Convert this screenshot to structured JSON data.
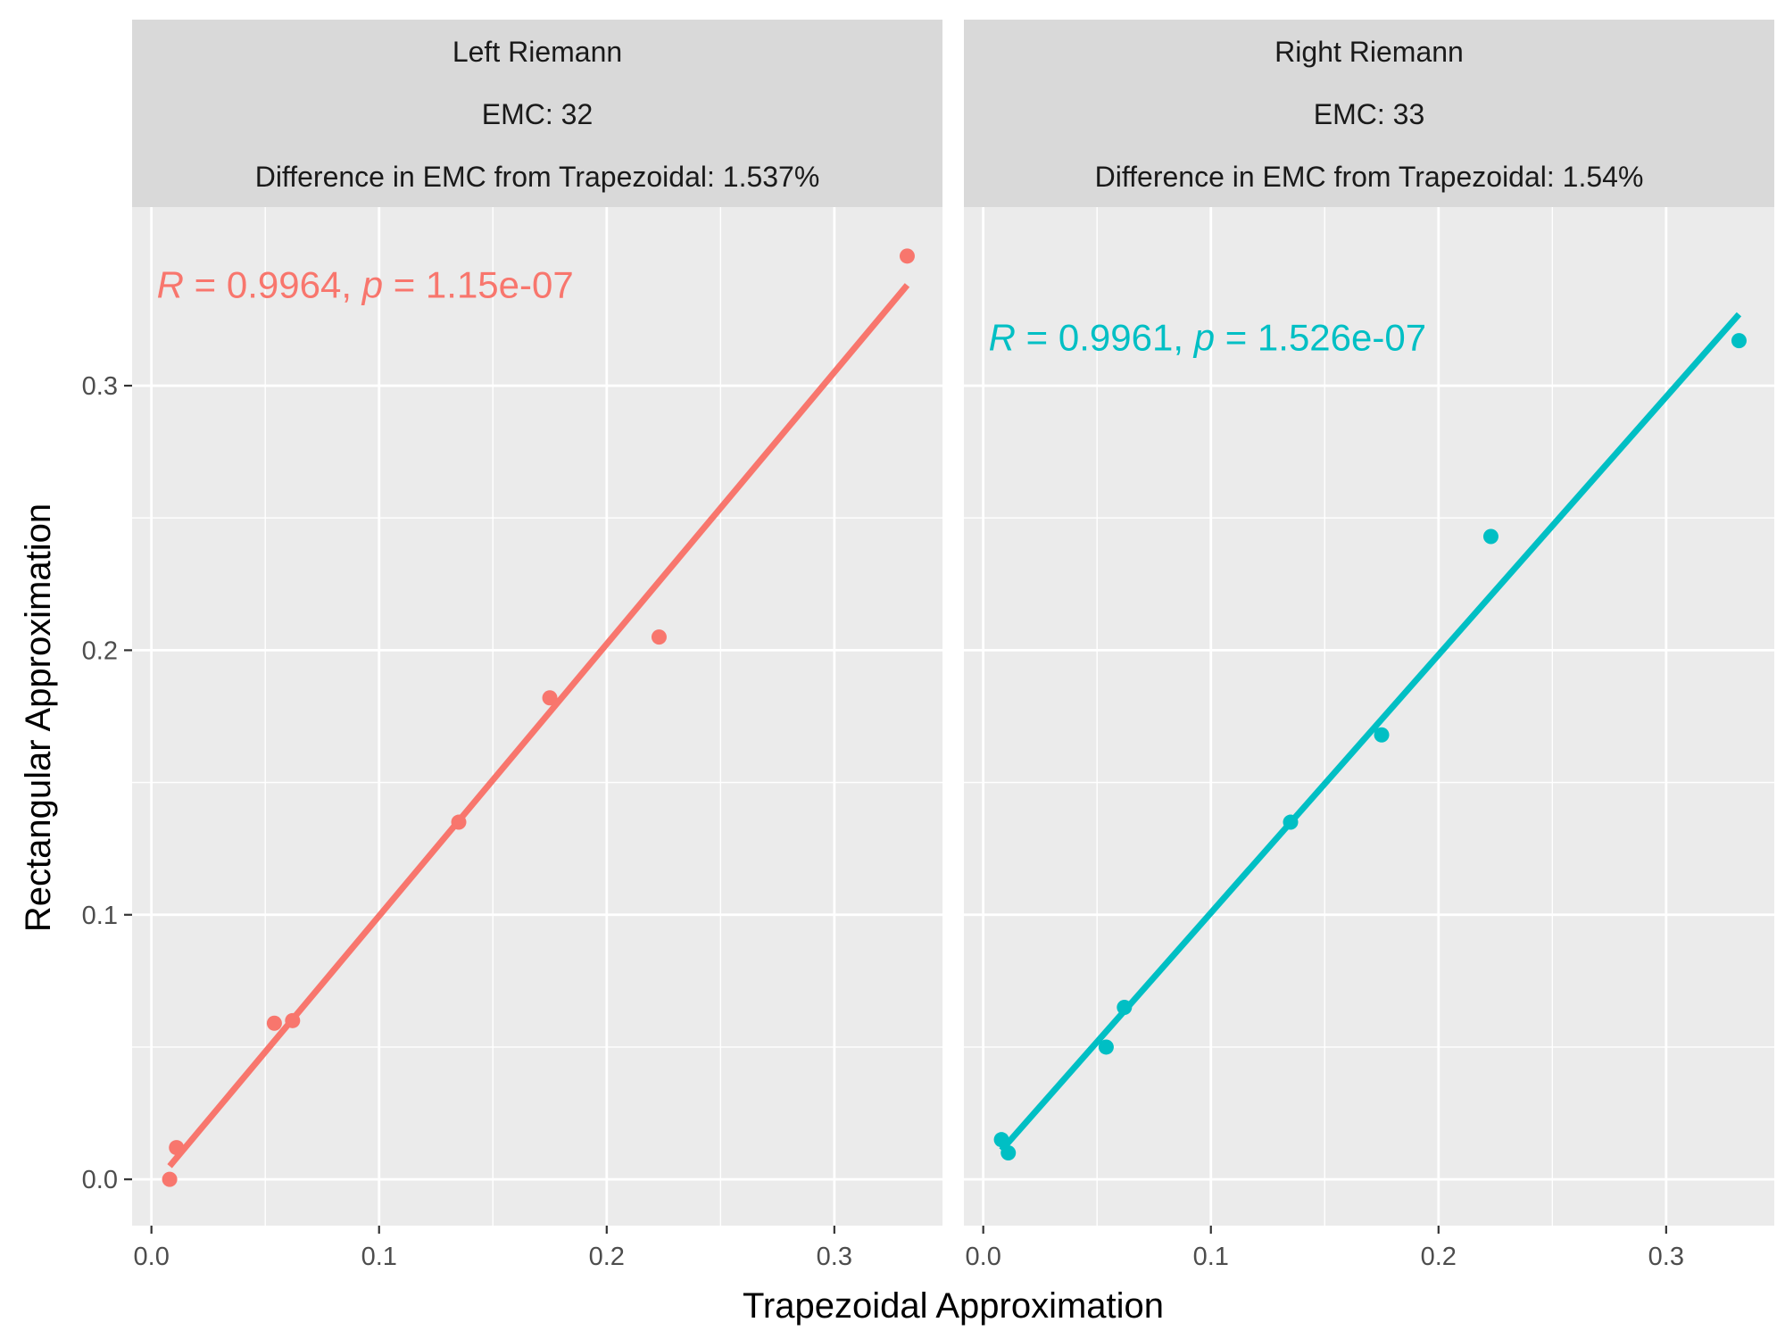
{
  "chart_data": {
    "type": "scatter",
    "xlabel": "Trapezoidal Approximation",
    "ylabel": "Rectangular Approximation",
    "xlim": [
      -0.0085,
      0.3475
    ],
    "ylim": [
      -0.0175,
      0.3675
    ],
    "x_ticks": [
      0.0,
      0.1,
      0.2,
      0.3
    ],
    "x_tick_labels": [
      "0.0",
      "0.1",
      "0.2",
      "0.3"
    ],
    "y_ticks": [
      0.0,
      0.1,
      0.2,
      0.3
    ],
    "y_tick_labels": [
      "0.0",
      "0.1",
      "0.2",
      "0.3"
    ],
    "grid": true,
    "panels": [
      {
        "strip": [
          "Left Riemann",
          "EMC: 32",
          "Difference in EMC from Trapezoidal: 1.537%"
        ],
        "color": "#F8766D",
        "points": [
          {
            "x": 0.008,
            "y": 0.0
          },
          {
            "x": 0.011,
            "y": 0.012
          },
          {
            "x": 0.054,
            "y": 0.059
          },
          {
            "x": 0.062,
            "y": 0.06
          },
          {
            "x": 0.135,
            "y": 0.135
          },
          {
            "x": 0.175,
            "y": 0.182
          },
          {
            "x": 0.223,
            "y": 0.205
          },
          {
            "x": 0.332,
            "y": 0.349
          }
        ],
        "fit_line": {
          "x": [
            0.008,
            0.332
          ],
          "y": [
            0.005,
            0.338
          ]
        },
        "annotation": {
          "r_label": "R",
          "r_text": " = 0.9964, ",
          "p_label": "p",
          "p_text": " = 1.15e-07",
          "x": 0.0,
          "y": 0.338
        }
      },
      {
        "strip": [
          "Right Riemann",
          "EMC: 33",
          "Difference in EMC from Trapezoidal: 1.54%"
        ],
        "color": "#00BFC4",
        "points": [
          {
            "x": 0.008,
            "y": 0.015
          },
          {
            "x": 0.011,
            "y": 0.01
          },
          {
            "x": 0.054,
            "y": 0.05
          },
          {
            "x": 0.062,
            "y": 0.065
          },
          {
            "x": 0.135,
            "y": 0.135
          },
          {
            "x": 0.175,
            "y": 0.168
          },
          {
            "x": 0.223,
            "y": 0.243
          },
          {
            "x": 0.332,
            "y": 0.317
          }
        ],
        "fit_line": {
          "x": [
            0.008,
            0.332
          ],
          "y": [
            0.011,
            0.327
          ]
        },
        "annotation": {
          "r_label": "R",
          "r_text": " = 0.9961, ",
          "p_label": "p",
          "p_text": " = 1.526e-07",
          "x": 0.0,
          "y": 0.318
        }
      }
    ]
  }
}
